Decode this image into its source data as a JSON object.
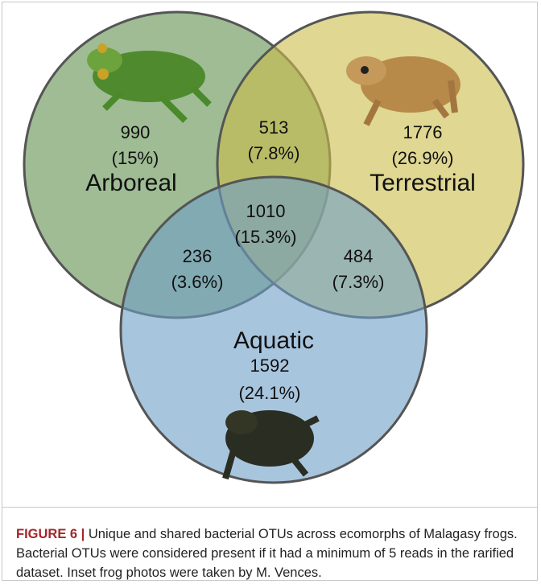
{
  "sets": [
    {
      "label": "Arboreal"
    },
    {
      "label": "Terrestrial"
    },
    {
      "label": "Aquatic"
    }
  ],
  "regions": [
    {
      "count": 990,
      "percent": "(15%)"
    },
    {
      "count": 513,
      "percent": "(7.8%)"
    },
    {
      "count": 1776,
      "percent": "(26.9%)"
    },
    {
      "count": 1010,
      "percent": "(15.3%)"
    },
    {
      "count": 236,
      "percent": "(3.6%)"
    },
    {
      "count": 484,
      "percent": "(7.3%)"
    },
    {
      "count": 1592,
      "percent": "(24.1%)"
    }
  ],
  "caption": {
    "label": "FIGURE 6 |",
    "text": "Unique and shared bacterial OTUs across ecomorphs of Malagasy frogs. Bacterial OTUs were considered present if it had a minimum of 5 reads in the rarified dataset. Inset frog photos were taken by M. Vences."
  }
}
